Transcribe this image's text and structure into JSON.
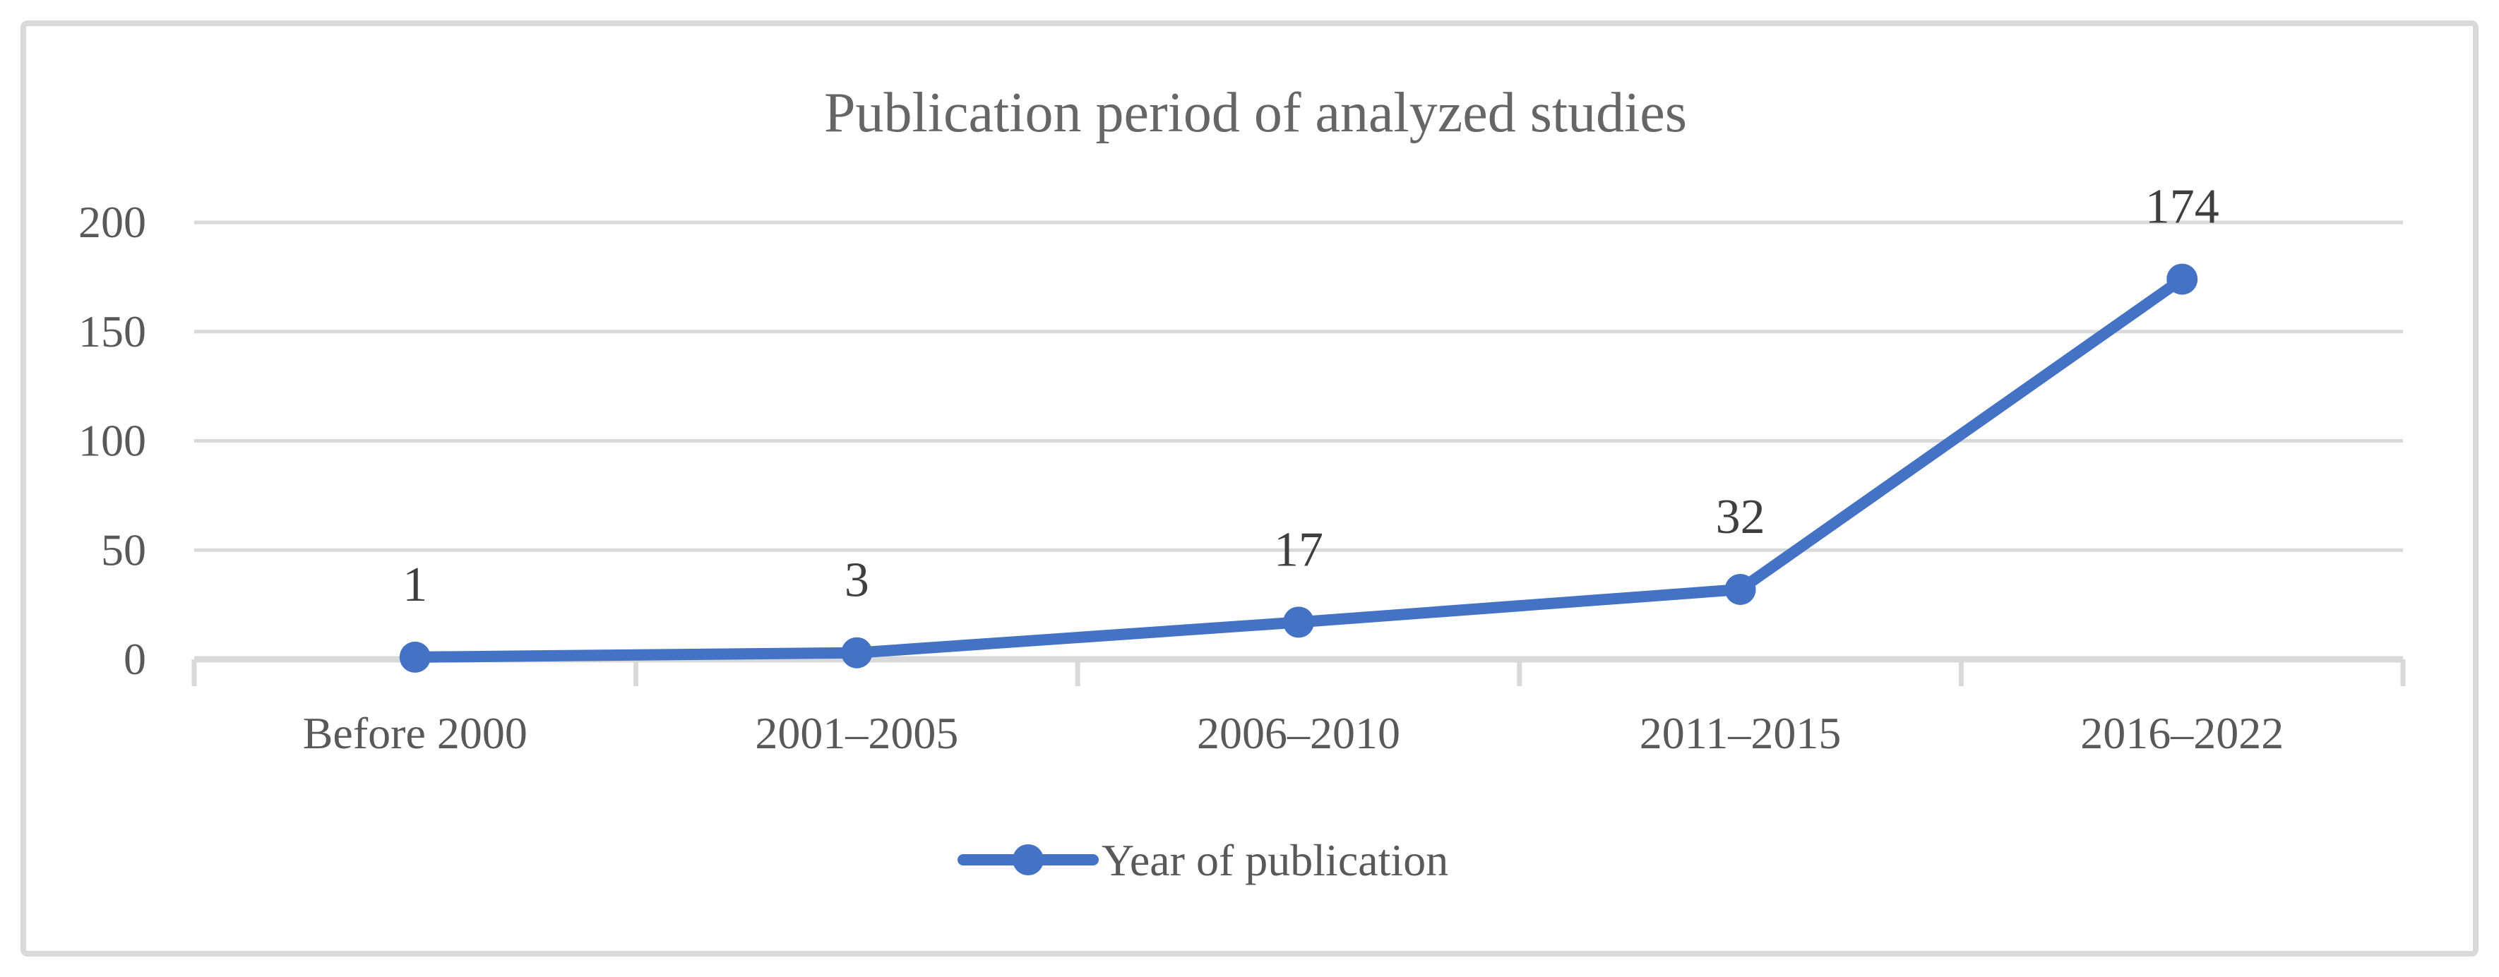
{
  "chart_data": {
    "type": "line",
    "title": "Publication period of analyzed studies",
    "categories": [
      "Before 2000",
      "2001–2005",
      "2006–2010",
      "2011–2015",
      "2016–2022"
    ],
    "series": [
      {
        "name": "Year of publication",
        "values": [
          1,
          3,
          17,
          32,
          174
        ],
        "color": "#4472C4",
        "marker": "circle"
      }
    ],
    "data_labels": [
      "1",
      "3",
      "17",
      "32",
      "174"
    ],
    "y_ticks": [
      0,
      50,
      100,
      150,
      200
    ],
    "ylim": [
      0,
      200
    ],
    "xlabel": "",
    "ylabel": "",
    "grid": true,
    "legend_position": "bottom",
    "colors": {
      "accent": "#4472C4",
      "gridline": "#D9D9D9",
      "axis_line": "#D9D9D9",
      "frame_border": "#D9D9D9",
      "tick_label_text": "#595959",
      "category_label_text": "#595959",
      "data_label_text": "#3F3F3F",
      "title_text": "#666666",
      "legend_text": "#595959",
      "background": "#FFFFFF"
    }
  }
}
